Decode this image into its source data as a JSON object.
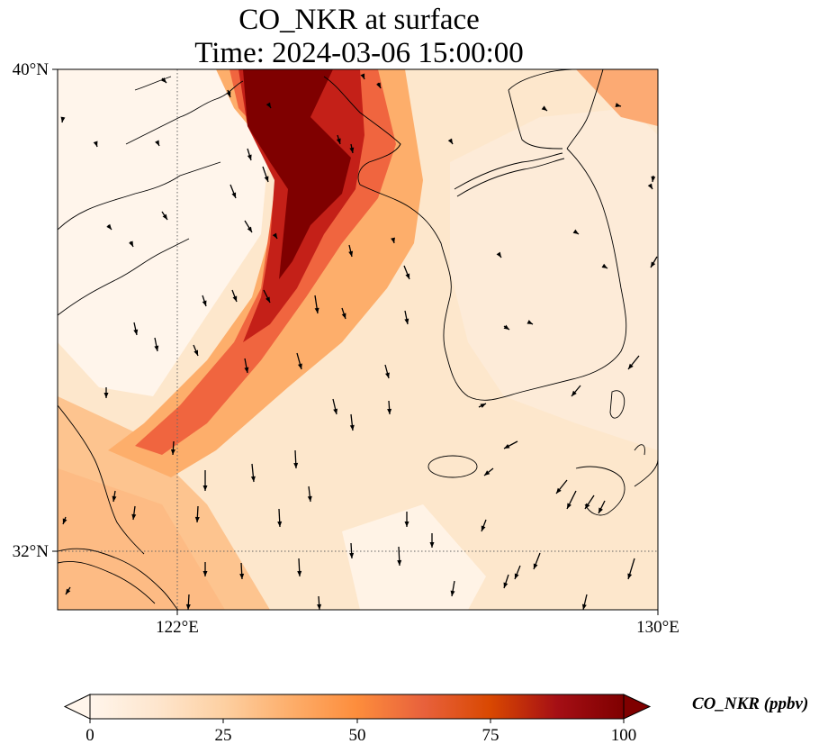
{
  "title": {
    "line1": "CO_NKR at surface",
    "line2": "Time: 2024-03-06 15:00:00"
  },
  "axes": {
    "lat_ticks": [
      {
        "value": 40,
        "label": "40°N"
      },
      {
        "value": 32,
        "label": "32°N"
      }
    ],
    "lon_ticks": [
      {
        "value": 122,
        "label": "122°E"
      },
      {
        "value": 130,
        "label": "130°E"
      }
    ],
    "lon_range": [
      120,
      130
    ],
    "lat_range": [
      31,
      40
    ],
    "gridlines": "dotted at 122°E and 32°N"
  },
  "colorbar": {
    "label": "CO_NKR (ppbv)",
    "ticks": [
      "0",
      "25",
      "50",
      "75",
      "100"
    ],
    "range": [
      0,
      100
    ],
    "extend": "both",
    "colormap": [
      "#fff5eb",
      "#fee6ce",
      "#fdd0a2",
      "#fdae6b",
      "#fd8d3c",
      "#f16913",
      "#d94801",
      "#a50f15",
      "#7f0000"
    ]
  },
  "plume": {
    "description_note": "",
    "core_max_value": 100
  }
}
